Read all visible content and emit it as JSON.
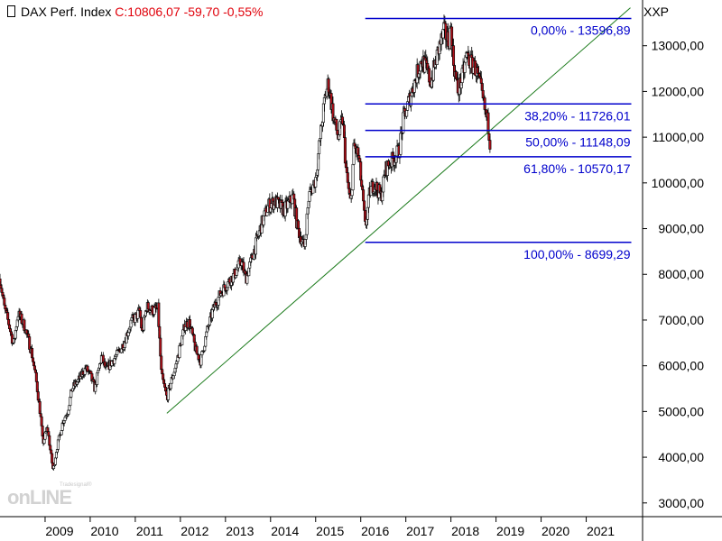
{
  "header": {
    "instrument": "DAX Perf. Index",
    "quote": "C:10806,07 -59,70 -0,55%",
    "exchange": "XXP"
  },
  "logo": {
    "small_text": "Tradesignal®",
    "main_text": "onLINE"
  },
  "colors": {
    "fib": "#0000cc",
    "trend": "#1a7a1a",
    "up_candle": "#ffffff",
    "down_candle": "#b0101a",
    "quote": "#e0000a"
  },
  "chart_data": {
    "type": "candlestick",
    "title": "DAX Perf. Index",
    "y_tick_labels": [
      "3000,00",
      "4000,00",
      "5000,00",
      "6000,00",
      "7000,00",
      "8000,00",
      "9000,00",
      "10000,00",
      "11000,00",
      "12000,00",
      "13000,00"
    ],
    "y_tick_values": [
      3000,
      4000,
      5000,
      6000,
      7000,
      8000,
      9000,
      10000,
      11000,
      12000,
      13000
    ],
    "ylim": [
      2700,
      14000
    ],
    "x_tick_labels": [
      "2009",
      "2010",
      "2011",
      "2012",
      "2013",
      "2014",
      "2015",
      "2016",
      "2017",
      "2018",
      "2019",
      "2020",
      "2021"
    ],
    "x_tick_values": [
      2009,
      2010,
      2011,
      2012,
      2013,
      2014,
      2015,
      2016,
      2017,
      2018,
      2019,
      2020,
      2021
    ],
    "xlim": [
      2008.0,
      2022.25
    ],
    "fibonacci": {
      "start_x": 2016.1,
      "end_x": 2022.0,
      "levels": [
        {
          "label": "0,00% - 13596,89",
          "value": 13596.89
        },
        {
          "label": "38,20% - 11726,01",
          "value": 11726.01
        },
        {
          "label": "50,00% - 11148,09",
          "value": 11148.09
        },
        {
          "label": "61,80% - 10570,17",
          "value": 10570.17
        },
        {
          "label": "100,00% - 8699,29",
          "value": 8699.29
        }
      ]
    },
    "trendline": {
      "x": [
        2011.7,
        2021.98
      ],
      "y": [
        4960,
        13830
      ]
    },
    "series_points": [
      [
        2008.0,
        7900
      ],
      [
        2008.1,
        7250
      ],
      [
        2008.2,
        6900
      ],
      [
        2008.3,
        6450
      ],
      [
        2008.4,
        7150
      ],
      [
        2008.55,
        6850
      ],
      [
        2008.7,
        6300
      ],
      [
        2008.8,
        5700
      ],
      [
        2008.9,
        4900
      ],
      [
        2008.95,
        4300
      ],
      [
        2009.05,
        4650
      ],
      [
        2009.13,
        4050
      ],
      [
        2009.18,
        3700
      ],
      [
        2009.25,
        4150
      ],
      [
        2009.4,
        4800
      ],
      [
        2009.5,
        5000
      ],
      [
        2009.6,
        5500
      ],
      [
        2009.75,
        5700
      ],
      [
        2009.9,
        5950
      ],
      [
        2010.0,
        5800
      ],
      [
        2010.1,
        5500
      ],
      [
        2010.25,
        6200
      ],
      [
        2010.35,
        5900
      ],
      [
        2010.45,
        6050
      ],
      [
        2010.6,
        6250
      ],
      [
        2010.75,
        6500
      ],
      [
        2010.9,
        6950
      ],
      [
        2011.0,
        7050
      ],
      [
        2011.1,
        7200
      ],
      [
        2011.15,
        6700
      ],
      [
        2011.25,
        7300
      ],
      [
        2011.4,
        7200
      ],
      [
        2011.5,
        7250
      ],
      [
        2011.58,
        5800
      ],
      [
        2011.7,
        5300
      ],
      [
        2011.78,
        5600
      ],
      [
        2011.9,
        6000
      ],
      [
        2012.0,
        6450
      ],
      [
        2012.1,
        6900
      ],
      [
        2012.2,
        6950
      ],
      [
        2012.35,
        6300
      ],
      [
        2012.45,
        6100
      ],
      [
        2012.6,
        6800
      ],
      [
        2012.75,
        7300
      ],
      [
        2012.9,
        7600
      ],
      [
        2013.0,
        7750
      ],
      [
        2013.2,
        8000
      ],
      [
        2013.35,
        8300
      ],
      [
        2013.45,
        7900
      ],
      [
        2013.6,
        8400
      ],
      [
        2013.8,
        9100
      ],
      [
        2013.95,
        9500
      ],
      [
        2014.1,
        9600
      ],
      [
        2014.3,
        9400
      ],
      [
        2014.5,
        9700
      ],
      [
        2014.6,
        9000
      ],
      [
        2014.75,
        8600
      ],
      [
        2014.85,
        9700
      ],
      [
        2015.0,
        10100
      ],
      [
        2015.1,
        11000
      ],
      [
        2015.2,
        11800
      ],
      [
        2015.28,
        12200
      ],
      [
        2015.4,
        11400
      ],
      [
        2015.5,
        11000
      ],
      [
        2015.6,
        11400
      ],
      [
        2015.68,
        10200
      ],
      [
        2015.78,
        9500
      ],
      [
        2015.85,
        10800
      ],
      [
        2015.95,
        10600
      ],
      [
        2016.05,
        9600
      ],
      [
        2016.1,
        9000
      ],
      [
        2016.2,
        9800
      ],
      [
        2016.3,
        10000
      ],
      [
        2016.45,
        9700
      ],
      [
        2016.55,
        10300
      ],
      [
        2016.7,
        10500
      ],
      [
        2016.85,
        10700
      ],
      [
        2016.95,
        11400
      ],
      [
        2017.1,
        11900
      ],
      [
        2017.25,
        12400
      ],
      [
        2017.35,
        12700
      ],
      [
        2017.45,
        12500
      ],
      [
        2017.55,
        12200
      ],
      [
        2017.65,
        12600
      ],
      [
        2017.75,
        13000
      ],
      [
        2017.85,
        13300
      ],
      [
        2017.95,
        13100
      ],
      [
        2018.0,
        13400
      ],
      [
        2018.05,
        12700
      ],
      [
        2018.15,
        12000
      ],
      [
        2018.25,
        12300
      ],
      [
        2018.35,
        12800
      ],
      [
        2018.45,
        12600
      ],
      [
        2018.55,
        12500
      ],
      [
        2018.65,
        12100
      ],
      [
        2018.75,
        11600
      ],
      [
        2018.82,
        11300
      ],
      [
        2018.88,
        10806
      ]
    ]
  }
}
